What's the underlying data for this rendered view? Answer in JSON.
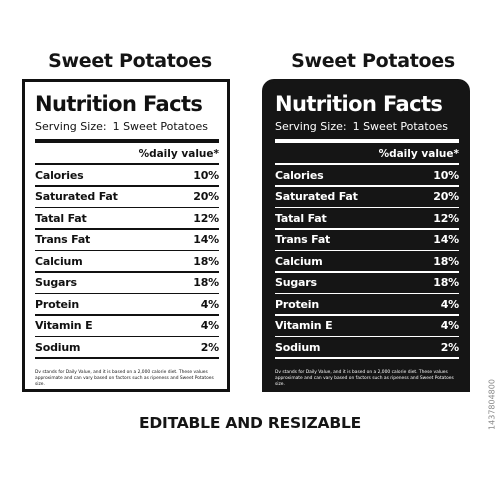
{
  "headings": {
    "left": "Sweet Potatoes",
    "right": "Sweet Potatoes"
  },
  "label": {
    "title": "Nutrition Facts",
    "serving_label": "Serving Size:",
    "serving_value": "1 Sweet Potatoes",
    "daily_header": "%daily value*",
    "rows": [
      {
        "name": "Calories",
        "value": "10%"
      },
      {
        "name": "Saturated Fat",
        "value": "20%"
      },
      {
        "name": "Tatal Fat",
        "value": "12%"
      },
      {
        "name": "Trans Fat",
        "value": "14%"
      },
      {
        "name": "Calcium",
        "value": "18%"
      },
      {
        "name": "Sugars",
        "value": "18%"
      },
      {
        "name": "Protein",
        "value": "4%"
      },
      {
        "name": "Vitamin E",
        "value": "4%"
      },
      {
        "name": "Sodium",
        "value": "2%"
      }
    ],
    "footnote": "Dv stands for Daily Value, and it is based on a 2,000 calorie diet. These values approximate and can vary based on factors such as ripeness and Sweet Potatoes size."
  },
  "caption": "EDITABLE AND RESIZABLE",
  "stock_id": "1437804800",
  "colors": {
    "ink": "#151515",
    "paper": "#ffffff"
  }
}
